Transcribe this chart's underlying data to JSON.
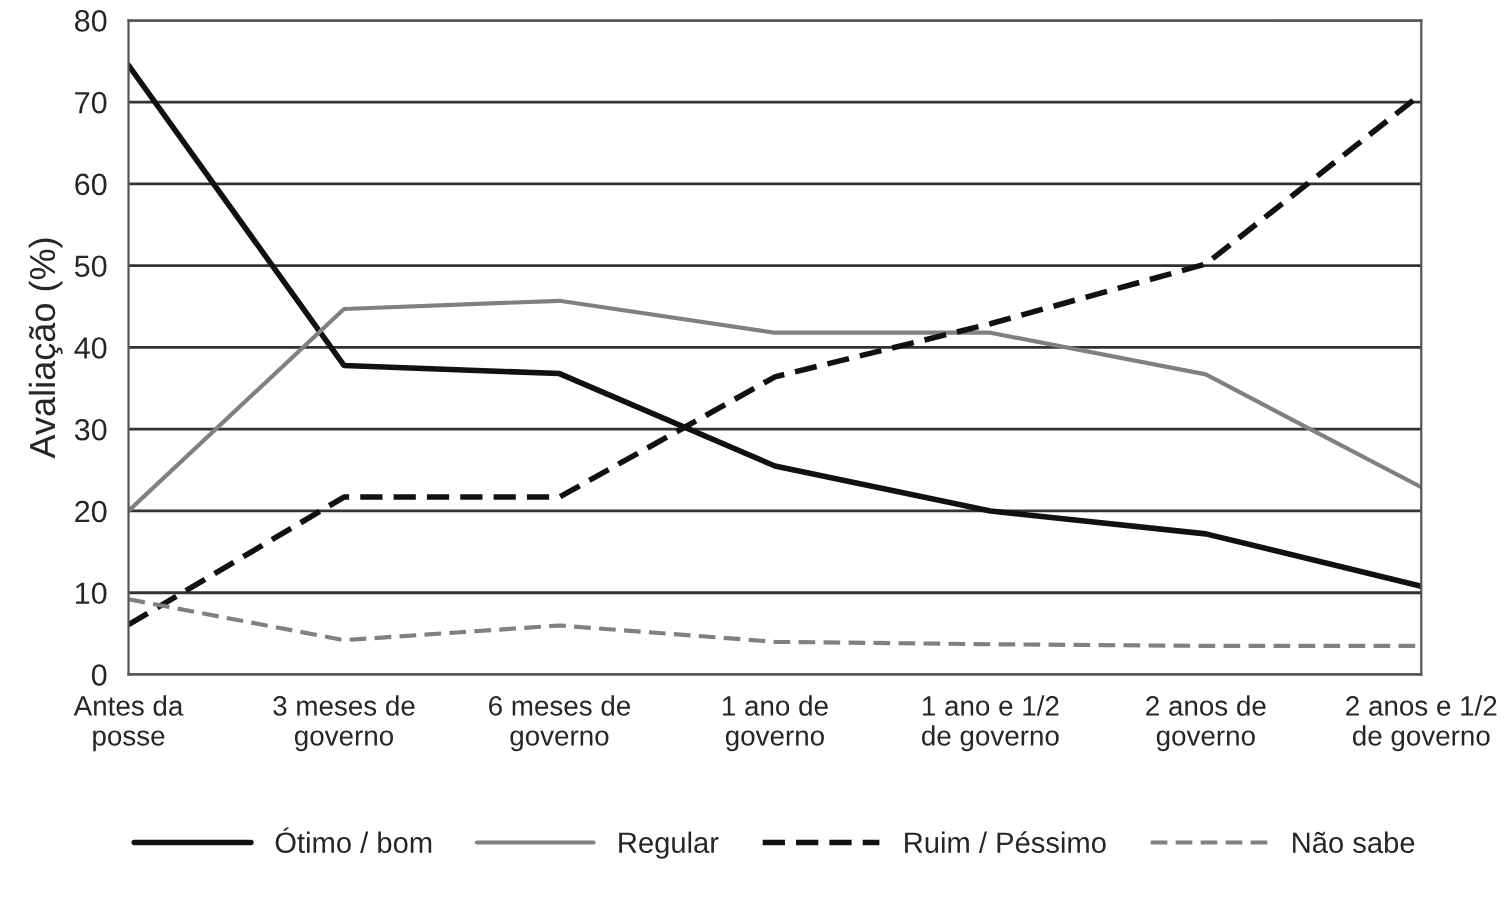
{
  "chart_data": {
    "type": "line",
    "ylabel": "Avaliação (%)",
    "categories": [
      "Antes da\nposse",
      "3 meses de\ngoverno",
      "6 meses de\ngoverno",
      "1 ano de\ngoverno",
      "1 ano e 1/2\nde governo",
      "2 anos de\ngoverno",
      "2 anos e 1/2\nde governo"
    ],
    "series": [
      {
        "name": "Ótimo / bom",
        "color": "#111111",
        "line_style": "solid",
        "values": [
          74.5,
          37.8,
          36.8,
          25.5,
          20,
          17.2,
          10.8
        ]
      },
      {
        "name": "Regular",
        "color": "#808080",
        "line_style": "solid",
        "values": [
          20,
          44.7,
          45.7,
          41.8,
          41.8,
          36.7,
          22.9
        ]
      },
      {
        "name": "Ruim / Péssimo",
        "color": "#111111",
        "line_style": "dashed",
        "values": [
          6.1,
          21.7,
          21.7,
          36.4,
          42.9,
          50.2,
          71
        ]
      },
      {
        "name": "Não sabe",
        "color": "#808080",
        "line_style": "dashed",
        "values": [
          9.2,
          4.2,
          6,
          4,
          3.7,
          3.5,
          3.5
        ]
      }
    ],
    "ylim": [
      0,
      80
    ],
    "yticks": [
      0,
      10,
      20,
      30,
      40,
      50,
      60,
      70,
      80
    ],
    "grid": "y",
    "legend": "bottom",
    "marker": "none"
  }
}
